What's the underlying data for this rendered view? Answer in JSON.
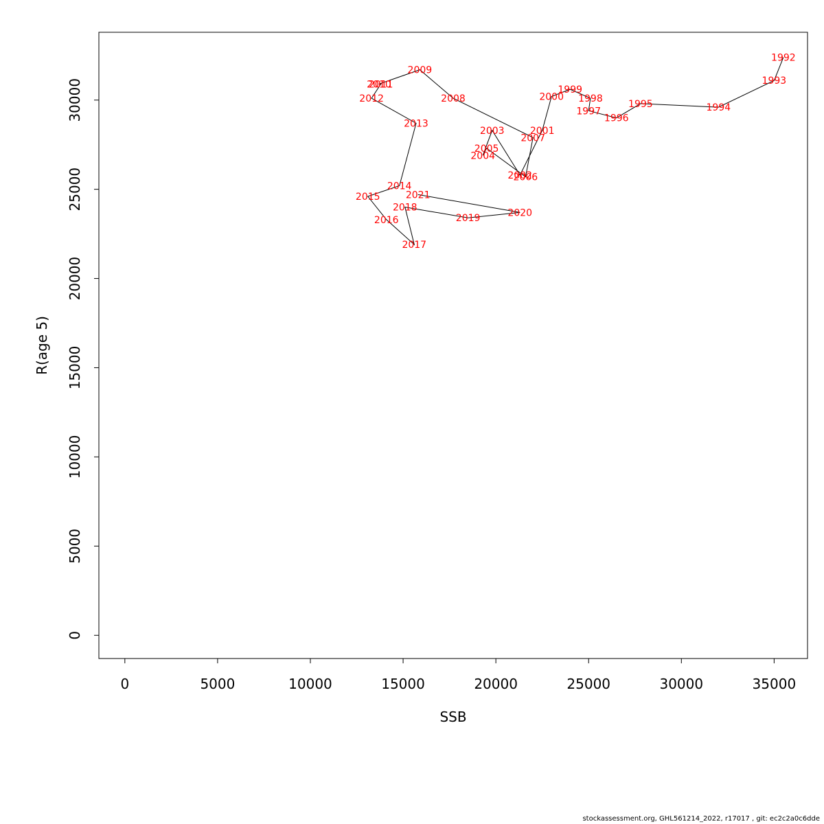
{
  "chart_data": {
    "type": "scatter",
    "xlabel": "SSB",
    "ylabel": "R(age 5)",
    "xlim": [
      -1400,
      36800
    ],
    "ylim": [
      -1300,
      33800
    ],
    "xticks": [
      0,
      5000,
      10000,
      15000,
      20000,
      25000,
      30000,
      35000
    ],
    "yticks": [
      0,
      5000,
      10000,
      15000,
      20000,
      25000,
      30000
    ],
    "grid": false,
    "connect_points": true,
    "label_color": "#ff0000",
    "line_color": "#000000",
    "points": [
      {
        "label": "1992",
        "x": 35500,
        "y": 32400
      },
      {
        "label": "1993",
        "x": 35000,
        "y": 31100
      },
      {
        "label": "1994",
        "x": 32000,
        "y": 29600
      },
      {
        "label": "1995",
        "x": 27800,
        "y": 29800
      },
      {
        "label": "1996",
        "x": 26500,
        "y": 29000
      },
      {
        "label": "1997",
        "x": 25000,
        "y": 29400
      },
      {
        "label": "1998",
        "x": 25100,
        "y": 30100
      },
      {
        "label": "1999",
        "x": 24000,
        "y": 30600
      },
      {
        "label": "2000",
        "x": 23000,
        "y": 30200
      },
      {
        "label": "2001",
        "x": 22500,
        "y": 28300
      },
      {
        "label": "2002",
        "x": 21300,
        "y": 25800
      },
      {
        "label": "2003",
        "x": 19800,
        "y": 28300
      },
      {
        "label": "2004",
        "x": 19300,
        "y": 26900
      },
      {
        "label": "2005",
        "x": 19500,
        "y": 27300
      },
      {
        "label": "2006",
        "x": 21600,
        "y": 25700
      },
      {
        "label": "2007",
        "x": 22000,
        "y": 27900
      },
      {
        "label": "2008",
        "x": 17700,
        "y": 30100
      },
      {
        "label": "2009",
        "x": 15900,
        "y": 31700
      },
      {
        "label": "2010",
        "x": 13700,
        "y": 30900
      },
      {
        "label": "2011",
        "x": 13800,
        "y": 30900
      },
      {
        "label": "2012",
        "x": 13300,
        "y": 30100
      },
      {
        "label": "2013",
        "x": 15700,
        "y": 28700
      },
      {
        "label": "2014",
        "x": 14800,
        "y": 25200
      },
      {
        "label": "2015",
        "x": 13100,
        "y": 24600
      },
      {
        "label": "2016",
        "x": 14100,
        "y": 23300
      },
      {
        "label": "2017",
        "x": 15600,
        "y": 21900
      },
      {
        "label": "2018",
        "x": 15100,
        "y": 24000
      },
      {
        "label": "2019",
        "x": 18500,
        "y": 23400
      },
      {
        "label": "2020",
        "x": 21300,
        "y": 23700
      },
      {
        "label": "2021",
        "x": 15800,
        "y": 24700
      }
    ]
  },
  "footer": "stockassessment.org, GHL561214_2022, r17017 , git: ec2c2a0c6dde"
}
